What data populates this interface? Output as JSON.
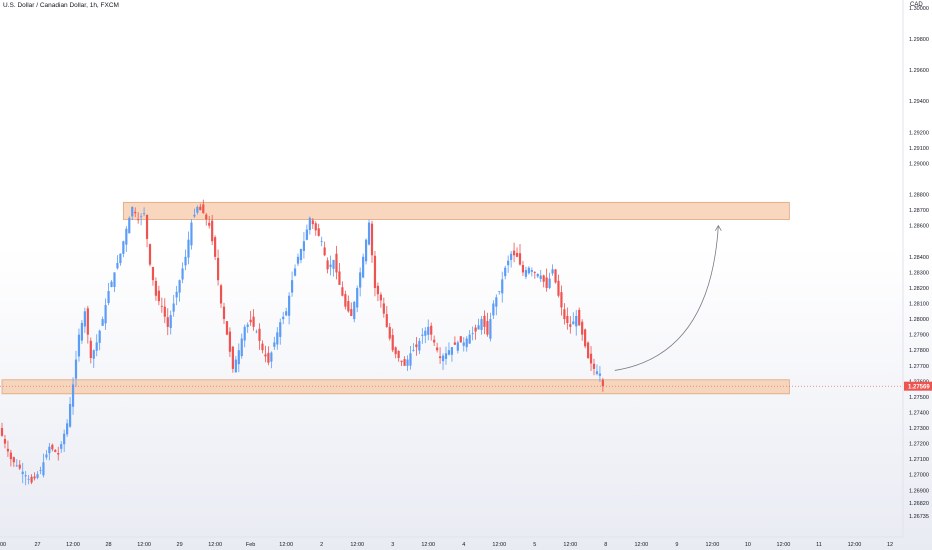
{
  "header": {
    "title": "U.S. Dollar / Canadian Dollar, 1h, FXCM"
  },
  "chart_data": {
    "type": "candlestick",
    "title": "U.S. Dollar / Canadian Dollar, 1h, FXCM",
    "currency": "CAD",
    "ylim": [
      1.266,
      1.3005
    ],
    "y_ticks": [
      "1.30000",
      "1.29800",
      "1.29600",
      "1.29400",
      "1.29200",
      "1.29100",
      "1.29000",
      "1.28800",
      "1.28700",
      "1.28600",
      "1.28400",
      "1.28300",
      "1.28200",
      "1.28100",
      "1.28000",
      "1.27900",
      "1.27800",
      "1.27700",
      "1.27600",
      "1.27500",
      "1.27400",
      "1.27300",
      "1.27200",
      "1.27100",
      "1.27000",
      "1.26900",
      "1.26820",
      "1.26735"
    ],
    "x_ticks": [
      {
        "label": "00",
        "i": 0
      },
      {
        "label": "27",
        "i": 12
      },
      {
        "label": "12:00",
        "i": 24
      },
      {
        "label": "28",
        "i": 36
      },
      {
        "label": "12:00",
        "i": 48
      },
      {
        "label": "29",
        "i": 60
      },
      {
        "label": "12:00",
        "i": 72
      },
      {
        "label": "Feb",
        "i": 84
      },
      {
        "label": "12:00",
        "i": 96
      },
      {
        "label": "2",
        "i": 108
      },
      {
        "label": "12:00",
        "i": 120
      },
      {
        "label": "3",
        "i": 132
      },
      {
        "label": "12:00",
        "i": 144
      },
      {
        "label": "4",
        "i": 156
      },
      {
        "label": "12:00",
        "i": 168
      },
      {
        "label": "5",
        "i": 180
      },
      {
        "label": "12:00",
        "i": 192
      },
      {
        "label": "8",
        "i": 204
      },
      {
        "label": "12:00",
        "i": 216
      },
      {
        "label": "9",
        "i": 228
      },
      {
        "label": "12:00",
        "i": 240
      },
      {
        "label": "10",
        "i": 252
      },
      {
        "label": "12:00",
        "i": 264
      },
      {
        "label": "11",
        "i": 276
      },
      {
        "label": "12:00",
        "i": 288
      },
      {
        "label": "12",
        "i": 300
      }
    ],
    "current_price": "1.27569",
    "current_value": 1.27569,
    "up_color": "#5b9cf6",
    "down_color": "#ef5350",
    "zone_color": "#f5c9a8",
    "zones": [
      {
        "i0": 41,
        "i1": 266,
        "y0": 1.2864,
        "y1": 1.2875
      },
      {
        "i0": 0,
        "i1": 266,
        "y0": 1.2752,
        "y1": 1.2761
      }
    ],
    "projection": {
      "i0": 207,
      "y0": 1.2767,
      "i1": 242,
      "y1": 1.286
    },
    "path": [
      [
        0,
        1.2725
      ],
      [
        3,
        1.271
      ],
      [
        7,
        1.2702
      ],
      [
        10,
        1.2695
      ],
      [
        13,
        1.2703
      ],
      [
        16,
        1.2718
      ],
      [
        19,
        1.2713
      ],
      [
        22,
        1.2733
      ],
      [
        24,
        1.2758
      ],
      [
        26,
        1.279
      ],
      [
        28,
        1.2805
      ],
      [
        30,
        1.2775
      ],
      [
        32,
        1.2785
      ],
      [
        34,
        1.28
      ],
      [
        36,
        1.2818
      ],
      [
        38,
        1.283
      ],
      [
        40,
        1.2842
      ],
      [
        42,
        1.2858
      ],
      [
        44,
        1.2872
      ],
      [
        46,
        1.2864
      ],
      [
        48,
        1.2868
      ],
      [
        50,
        1.2835
      ],
      [
        52,
        1.2815
      ],
      [
        54,
        1.2808
      ],
      [
        56,
        1.2795
      ],
      [
        58,
        1.281
      ],
      [
        60,
        1.2825
      ],
      [
        62,
        1.284
      ],
      [
        64,
        1.2862
      ],
      [
        66,
        1.2872
      ],
      [
        68,
        1.2868
      ],
      [
        70,
        1.286
      ],
      [
        72,
        1.284
      ],
      [
        74,
        1.281
      ],
      [
        76,
        1.279
      ],
      [
        78,
        1.2768
      ],
      [
        80,
        1.278
      ],
      [
        82,
        1.2795
      ],
      [
        84,
        1.2798
      ],
      [
        86,
        1.2792
      ],
      [
        88,
        1.278
      ],
      [
        90,
        1.2772
      ],
      [
        92,
        1.2785
      ],
      [
        94,
        1.2798
      ],
      [
        96,
        1.2805
      ],
      [
        98,
        1.2825
      ],
      [
        100,
        1.284
      ],
      [
        102,
        1.285
      ],
      [
        104,
        1.2865
      ],
      [
        106,
        1.2857
      ],
      [
        108,
        1.285
      ],
      [
        110,
        1.2832
      ],
      [
        112,
        1.2838
      ],
      [
        114,
        1.2822
      ],
      [
        116,
        1.2808
      ],
      [
        118,
        1.2802
      ],
      [
        120,
        1.282
      ],
      [
        122,
        1.284
      ],
      [
        124,
        1.2862
      ],
      [
        126,
        1.282
      ],
      [
        128,
        1.2812
      ],
      [
        130,
        1.2795
      ],
      [
        132,
        1.278
      ],
      [
        134,
        1.2775
      ],
      [
        136,
        1.277
      ],
      [
        138,
        1.2778
      ],
      [
        140,
        1.2782
      ],
      [
        142,
        1.279
      ],
      [
        144,
        1.2795
      ],
      [
        146,
        1.2785
      ],
      [
        148,
        1.2775
      ],
      [
        150,
        1.2778
      ],
      [
        152,
        1.2782
      ],
      [
        154,
        1.2785
      ],
      [
        156,
        1.2785
      ],
      [
        158,
        1.279
      ],
      [
        160,
        1.2792
      ],
      [
        162,
        1.28
      ],
      [
        164,
        1.279
      ],
      [
        166,
        1.281
      ],
      [
        168,
        1.2818
      ],
      [
        170,
        1.2833
      ],
      [
        172,
        1.2842
      ],
      [
        174,
        1.284
      ],
      [
        176,
        1.283
      ],
      [
        178,
        1.2833
      ],
      [
        180,
        1.283
      ],
      [
        182,
        1.2828
      ],
      [
        184,
        1.282
      ],
      [
        186,
        1.2832
      ],
      [
        188,
        1.2815
      ],
      [
        190,
        1.28
      ],
      [
        192,
        1.2795
      ],
      [
        194,
        1.2802
      ],
      [
        196,
        1.279
      ],
      [
        198,
        1.2775
      ],
      [
        200,
        1.2768
      ],
      [
        202,
        1.2765
      ],
      [
        203,
        1.2757
      ]
    ]
  }
}
